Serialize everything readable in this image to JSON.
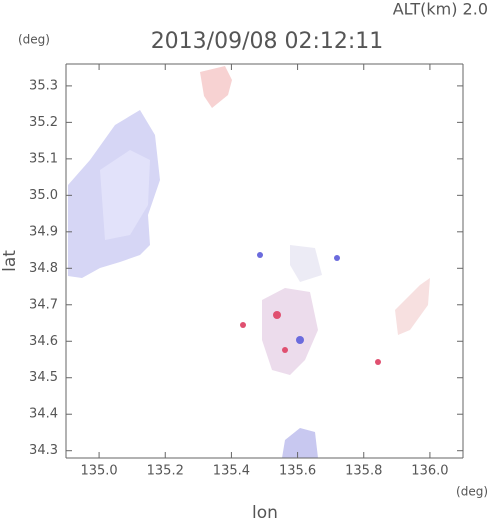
{
  "chart_data": {
    "type": "map",
    "title": "2013/09/08 02:12:11",
    "subtitle": "ALT(km) 2.0",
    "y_unit": "(deg)",
    "x_unit": "(deg)",
    "x_label": "lon",
    "y_label": "lat",
    "xlim": [
      134.9,
      136.1
    ],
    "ylim": [
      34.28,
      35.36
    ],
    "xticks": [
      {
        "value": 135,
        "label": "135.0"
      },
      135.2,
      135.4,
      135.6,
      135.8,
      {
        "value": 136,
        "label": "136.0"
      }
    ],
    "yticks": [
      34.3,
      34.4,
      34.5,
      34.6,
      34.7,
      34.8,
      34.9,
      {
        "value": 35,
        "label": "35.0"
      },
      35.1,
      35.2,
      35.3
    ]
  }
}
